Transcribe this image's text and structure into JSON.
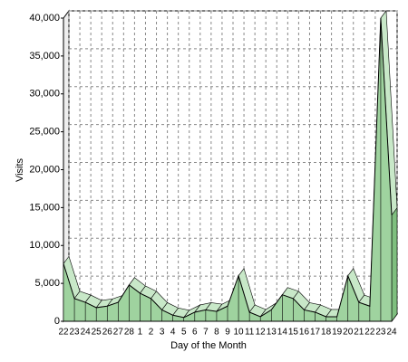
{
  "chart_data": {
    "type": "area3d",
    "xlabel": "Day of the Month",
    "ylabel": "Visits",
    "categories": [
      "22",
      "23",
      "24",
      "25",
      "26",
      "27",
      "28",
      "1",
      "2",
      "3",
      "4",
      "5",
      "6",
      "7",
      "8",
      "9",
      "10",
      "11",
      "12",
      "13",
      "14",
      "15",
      "16",
      "17",
      "18",
      "19",
      "20",
      "21",
      "22",
      "23",
      "24"
    ],
    "values": [
      7600,
      3000,
      2500,
      1800,
      2000,
      2500,
      4800,
      3700,
      3000,
      1500,
      800,
      500,
      1200,
      1500,
      1300,
      2000,
      6000,
      1200,
      600,
      1500,
      3500,
      3000,
      1500,
      1200,
      600,
      600,
      6000,
      2500,
      2000,
      40000,
      14000
    ],
    "color": "#9fd39f",
    "ylim": [
      0,
      40000
    ],
    "yticks": [
      0,
      {
        "value": 5000,
        "label": "5,000"
      },
      {
        "value": 10000,
        "label": "10,000"
      },
      {
        "value": 15000,
        "label": "15,000"
      },
      {
        "value": 20000,
        "label": "20,000"
      },
      {
        "value": 25000,
        "label": "25,000"
      },
      {
        "value": 30000,
        "label": "30,000"
      },
      {
        "value": 35000,
        "label": "35,000"
      },
      {
        "value": 40000,
        "label": "40,000"
      }
    ],
    "grid": true
  }
}
